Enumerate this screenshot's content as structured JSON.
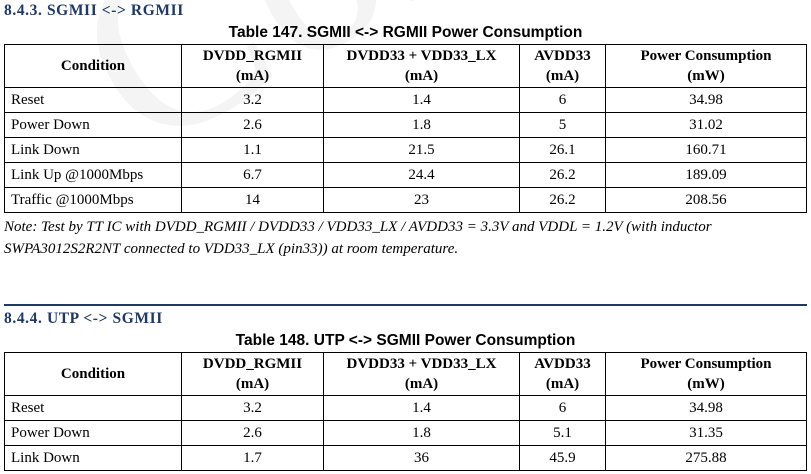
{
  "watermark": "Conf",
  "section1": {
    "heading": "8.4.3. SGMII <-> RGMII",
    "caption": "Table 147. SGMII <-> RGMII Power Consumption",
    "headers": [
      {
        "line1": "Condition",
        "line2": ""
      },
      {
        "line1": "DVDD_RGMII",
        "line2": "(mA)"
      },
      {
        "line1": "DVDD33 + VDD33_LX",
        "line2": "(mA)"
      },
      {
        "line1": "AVDD33",
        "line2": "(mA)"
      },
      {
        "line1": "Power Consumption",
        "line2": "(mW)"
      }
    ],
    "rows": [
      {
        "condition": "Reset",
        "dvdd_rgmii": "3.2",
        "dvdd33_vdd33lx": "1.4",
        "avdd33": "6",
        "power": "34.98"
      },
      {
        "condition": "Power Down",
        "dvdd_rgmii": "2.6",
        "dvdd33_vdd33lx": "1.8",
        "avdd33": "5",
        "power": "31.02"
      },
      {
        "condition": "Link Down",
        "dvdd_rgmii": "1.1",
        "dvdd33_vdd33lx": "21.5",
        "avdd33": "26.1",
        "power": "160.71"
      },
      {
        "condition": "Link Up @1000Mbps",
        "dvdd_rgmii": "6.7",
        "dvdd33_vdd33lx": "24.4",
        "avdd33": "26.2",
        "power": "189.09"
      },
      {
        "condition": "Traffic @1000Mbps",
        "dvdd_rgmii": "14",
        "dvdd33_vdd33lx": "23",
        "avdd33": "26.2",
        "power": "208.56"
      }
    ],
    "note": "Note: Test by TT IC with DVDD_RGMII / DVDD33 / VDD33_LX / AVDD33 = 3.3V and VDDL = 1.2V (with inductor SWPA3012S2R2NT connected to VDD33_LX (pin33)) at room temperature."
  },
  "section2": {
    "heading": "8.4.4. UTP <-> SGMII",
    "caption": "Table 148. UTP <-> SGMII Power Consumption",
    "headers": [
      {
        "line1": "Condition",
        "line2": ""
      },
      {
        "line1": "DVDD_RGMII",
        "line2": "(mA)"
      },
      {
        "line1": "DVDD33 + VDD33_LX",
        "line2": "(mA)"
      },
      {
        "line1": "AVDD33",
        "line2": "(mA)"
      },
      {
        "line1": "Power Consumption",
        "line2": "(mW)"
      }
    ],
    "rows": [
      {
        "condition": "Reset",
        "dvdd_rgmii": "3.2",
        "dvdd33_vdd33lx": "1.4",
        "avdd33": "6",
        "power": "34.98"
      },
      {
        "condition": "Power Down",
        "dvdd_rgmii": "2.6",
        "dvdd33_vdd33lx": "1.8",
        "avdd33": "5.1",
        "power": "31.35"
      },
      {
        "condition": "Link Down",
        "dvdd_rgmii": "1.7",
        "dvdd33_vdd33lx": "36",
        "avdd33": "45.9",
        "power": "275.88"
      }
    ]
  }
}
